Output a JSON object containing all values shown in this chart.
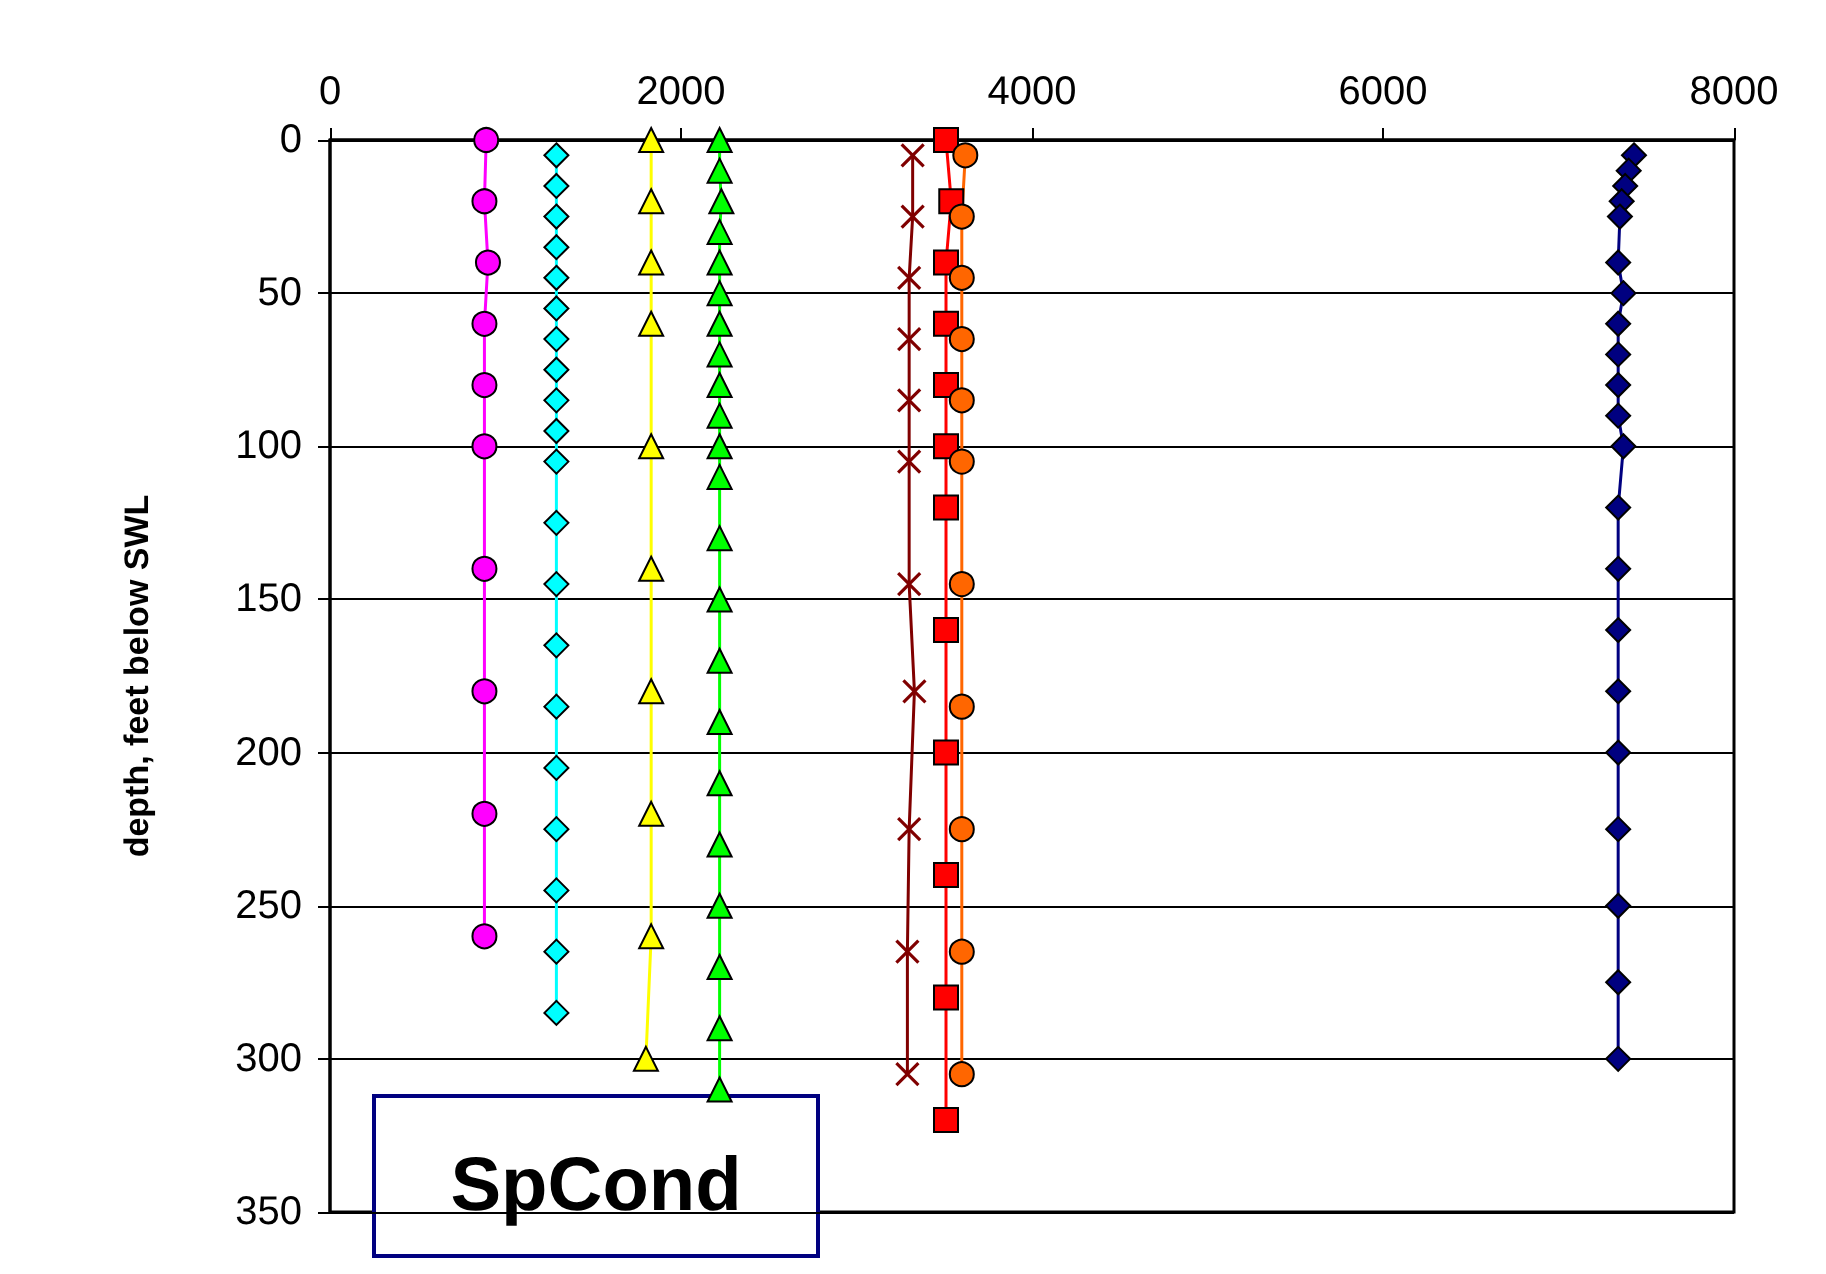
{
  "chart_data": {
    "type": "line",
    "ylabel": "depth, feet below SWL",
    "annotations": [
      "SpCond"
    ],
    "xlim": [
      0,
      8000
    ],
    "xticks": [
      0,
      2000,
      4000,
      6000,
      8000
    ],
    "ylim": [
      350,
      0
    ],
    "yticks": [
      0,
      50,
      100,
      150,
      200,
      250,
      300,
      350
    ],
    "grid": "y",
    "series": [
      {
        "color": "#ff00ff",
        "marker": "circle",
        "x": [
          890,
          880,
          900,
          880,
          880,
          880,
          880,
          880,
          880,
          880
        ],
        "values": [
          0,
          20,
          40,
          60,
          80,
          100,
          140,
          180,
          220,
          260
        ]
      },
      {
        "color": "#00ffff",
        "marker": "diamond",
        "x": [
          1290,
          1290,
          1290,
          1290,
          1290,
          1290,
          1290,
          1290,
          1290,
          1290,
          1290,
          1290,
          1290,
          1290,
          1290,
          1290,
          1290,
          1290,
          1290,
          1290
        ],
        "values": [
          5,
          15,
          25,
          35,
          45,
          55,
          65,
          75,
          85,
          95,
          105,
          125,
          145,
          165,
          185,
          205,
          225,
          245,
          265,
          285
        ]
      },
      {
        "color": "#ffff00",
        "marker": "triangle",
        "x": [
          1830,
          1830,
          1830,
          1830,
          1830,
          1830,
          1830,
          1830,
          1830,
          1800
        ],
        "values": [
          0,
          20,
          40,
          60,
          100,
          140,
          180,
          220,
          260,
          300
        ]
      },
      {
        "color": "#00ff00",
        "marker": "triangle",
        "x": [
          2220,
          2220,
          2230,
          2220,
          2220,
          2220,
          2220,
          2220,
          2220,
          2220,
          2220,
          2220,
          2220,
          2220,
          2220,
          2220,
          2220,
          2220,
          2220,
          2220,
          2220,
          2220
        ],
        "values": [
          0,
          10,
          20,
          30,
          40,
          50,
          60,
          70,
          80,
          90,
          100,
          110,
          130,
          150,
          170,
          190,
          210,
          230,
          250,
          270,
          290,
          310
        ]
      },
      {
        "color": "#800000",
        "marker": "cross",
        "x": [
          3320,
          3320,
          3300,
          3300,
          3300,
          3300,
          3300,
          3330,
          3300,
          3290,
          3290
        ],
        "values": [
          5,
          25,
          45,
          65,
          85,
          105,
          145,
          180,
          225,
          265,
          305
        ]
      },
      {
        "color": "#ff0000",
        "marker": "square",
        "x": [
          3510,
          3540,
          3510,
          3510,
          3510,
          3510,
          3510,
          3510,
          3510,
          3510,
          3510,
          3510
        ],
        "values": [
          0,
          20,
          40,
          60,
          80,
          100,
          120,
          160,
          200,
          240,
          280,
          320
        ]
      },
      {
        "color": "#ff6600",
        "marker": "circle",
        "x": [
          3620,
          3600,
          3600,
          3600,
          3600,
          3600,
          3600,
          3600,
          3600,
          3600,
          3600
        ],
        "values": [
          5,
          25,
          45,
          65,
          85,
          105,
          145,
          185,
          225,
          265,
          305
        ]
      },
      {
        "color": "#000080",
        "marker": "diamond",
        "x": [
          7430,
          7400,
          7380,
          7360,
          7350,
          7340,
          7370,
          7340,
          7340,
          7340,
          7340,
          7370,
          7340,
          7340,
          7340,
          7340,
          7340,
          7340,
          7340,
          7340,
          7340
        ],
        "values": [
          5,
          10,
          15,
          20,
          25,
          40,
          50,
          60,
          70,
          80,
          90,
          100,
          120,
          140,
          160,
          180,
          200,
          225,
          250,
          275,
          300
        ]
      }
    ]
  }
}
